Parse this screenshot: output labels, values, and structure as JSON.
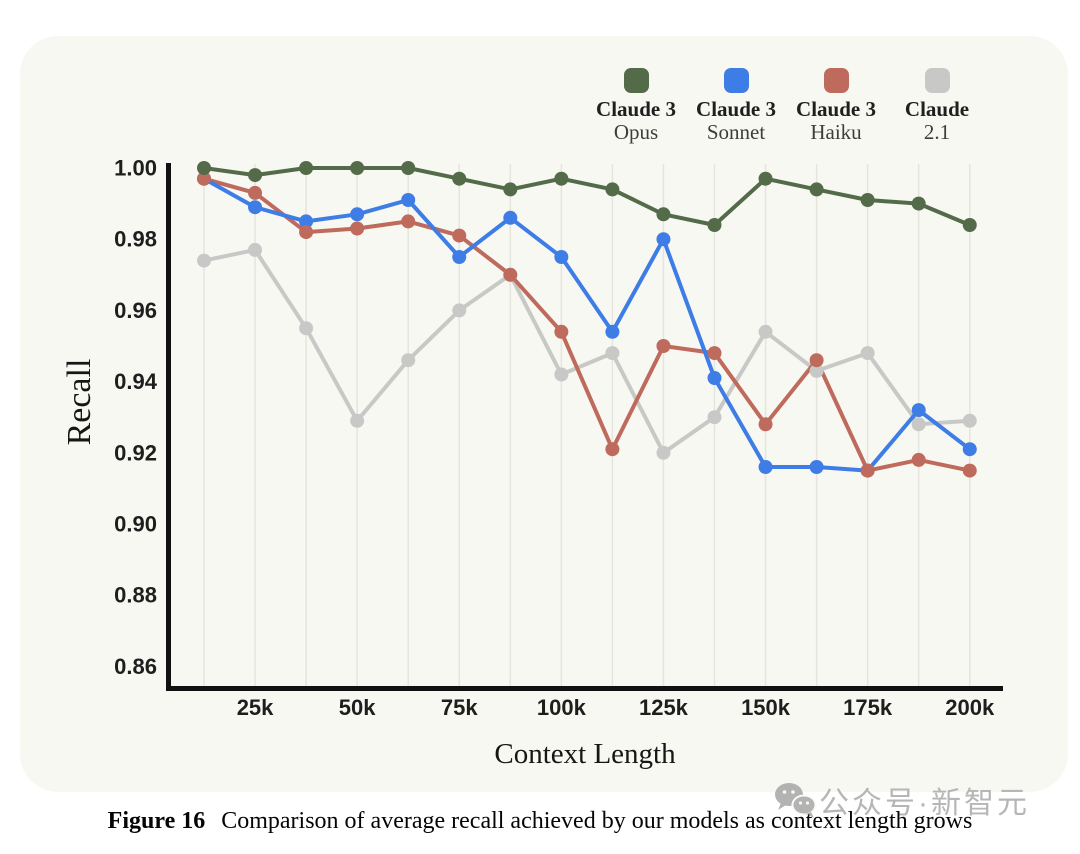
{
  "chart_data": {
    "type": "line",
    "title": "",
    "xlabel": "Context Length",
    "ylabel": "Recall",
    "x_values_k_tokens": [
      12.5,
      25,
      37.5,
      50,
      62.5,
      75,
      87.5,
      100,
      112.5,
      125,
      137.5,
      150,
      162.5,
      175,
      187.5,
      200
    ],
    "x_tick_labels": [
      "25k",
      "50k",
      "75k",
      "100k",
      "125k",
      "150k",
      "175k",
      "200k"
    ],
    "y_tick_labels": [
      "1.00",
      "0.98",
      "0.96",
      "0.94",
      "0.92",
      "0.90",
      "0.88",
      "0.86"
    ],
    "y_ticks": [
      1.0,
      0.98,
      0.96,
      0.94,
      0.92,
      0.9,
      0.88,
      0.86
    ],
    "ylim": [
      0.853,
      1.002
    ],
    "grid": "vertical-only",
    "legend_position": "top-right",
    "series": [
      {
        "id": "claude-3-opus",
        "name": "Claude 3 Opus",
        "legend_line1": "Claude 3",
        "legend_line2": "Opus",
        "color": "#546B4A",
        "values": [
          1.0,
          0.998,
          1.0,
          1.0,
          1.0,
          0.997,
          0.994,
          0.997,
          0.994,
          0.987,
          0.984,
          0.997,
          0.994,
          0.991,
          0.99,
          0.984
        ]
      },
      {
        "id": "claude-3-sonnet",
        "name": "Claude 3 Sonnet",
        "legend_line1": "Claude 3",
        "legend_line2": "Sonnet",
        "color": "#3E7DE5",
        "values": [
          0.997,
          0.989,
          0.985,
          0.987,
          0.991,
          0.975,
          0.986,
          0.975,
          0.954,
          0.98,
          0.941,
          0.916,
          0.916,
          0.915,
          0.932,
          0.921
        ]
      },
      {
        "id": "claude-3-haiku",
        "name": "Claude 3 Haiku",
        "legend_line1": "Claude 3",
        "legend_line2": "Haiku",
        "color": "#BE6A5D",
        "values": [
          0.997,
          0.993,
          0.982,
          0.983,
          0.985,
          0.981,
          0.97,
          0.954,
          0.921,
          0.95,
          0.948,
          0.928,
          0.946,
          0.915,
          0.918,
          0.915
        ]
      },
      {
        "id": "claude-2-1",
        "name": "Claude 2.1",
        "legend_line1": "Claude",
        "legend_line2": "2.1",
        "color": "#C8C8C6",
        "values": [
          0.974,
          0.977,
          0.955,
          0.929,
          0.946,
          0.96,
          0.97,
          0.942,
          0.948,
          0.92,
          0.93,
          0.954,
          0.943,
          0.948,
          0.928,
          0.929
        ]
      }
    ],
    "line_draw_order": [
      "claude-2-1",
      "claude-3-haiku",
      "claude-3-sonnet",
      "claude-3-opus"
    ],
    "marker_draw_order": [
      "claude-2-1",
      "claude-3-sonnet",
      "claude-3-haiku",
      "claude-3-opus"
    ]
  },
  "colors": {
    "card_background": "#F8F8F2",
    "page_background": "#FFFFFF",
    "axis": "#111111",
    "gridline": "#E6E5DD",
    "tick_text": "#1E1E1E",
    "watermark": "#AFAFAF"
  },
  "caption": {
    "label": "Figure 16",
    "text": "Comparison of average recall achieved by our models as context length grows"
  },
  "watermark": {
    "icon": "wechat-icon",
    "text": "公众号·新智元"
  }
}
